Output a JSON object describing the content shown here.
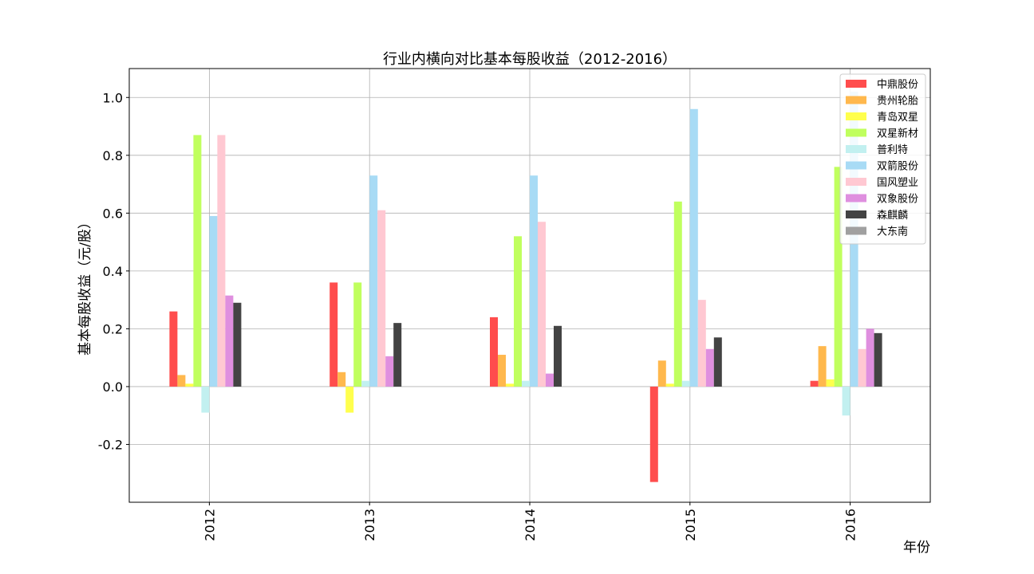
{
  "chart_data": {
    "type": "bar",
    "title": "行业内横向对比基本每股收益（2012-2016）",
    "xlabel": "年份",
    "ylabel": "基本每股收益（元/股）",
    "categories": [
      "2012",
      "2013",
      "2014",
      "2015",
      "2016"
    ],
    "ylim": [
      -0.4,
      1.1
    ],
    "yticks": [
      -0.2,
      0.0,
      0.2,
      0.4,
      0.6,
      0.8,
      1.0
    ],
    "ytick_labels": [
      "-0.2",
      "0.0",
      "0.2",
      "0.4",
      "0.6",
      "0.8",
      "1.0"
    ],
    "grid": true,
    "legend_position": "top-right",
    "series": [
      {
        "name": "中鼎股份",
        "color": "#ff4d4d",
        "values": [
          0.26,
          0.36,
          0.24,
          -0.33,
          0.02
        ]
      },
      {
        "name": "贵州轮胎",
        "color": "#ffb84d",
        "values": [
          0.04,
          0.05,
          0.11,
          0.09,
          0.14
        ]
      },
      {
        "name": "青岛双星",
        "color": "#ffff4d",
        "values": [
          0.01,
          -0.09,
          0.01,
          0.01,
          0.025
        ]
      },
      {
        "name": "双星新材",
        "color": "#c0ff5e",
        "values": [
          0.87,
          0.36,
          0.52,
          0.64,
          0.76
        ]
      },
      {
        "name": "普利特",
        "color": "#c2f0f0",
        "values": [
          -0.09,
          0.02,
          0.02,
          0.02,
          -0.1
        ]
      },
      {
        "name": "双箭股份",
        "color": "#a8dbf5",
        "values": [
          0.59,
          0.73,
          0.73,
          0.96,
          1.02
        ]
      },
      {
        "name": "国风塑业",
        "color": "#ffc8d2",
        "values": [
          0.87,
          0.61,
          0.57,
          0.3,
          0.13
        ]
      },
      {
        "name": "双象股份",
        "color": "#df8fdf",
        "values": [
          0.315,
          0.105,
          0.045,
          0.13,
          0.2
        ]
      },
      {
        "name": "森麒麟",
        "color": "#434343",
        "values": [
          0.29,
          0.22,
          0.21,
          0.17,
          0.185
        ]
      },
      {
        "name": "大东南",
        "color": "#a0a0a0",
        "values": [
          0.0,
          0.0,
          0.0,
          0.0,
          0.0
        ]
      }
    ]
  }
}
